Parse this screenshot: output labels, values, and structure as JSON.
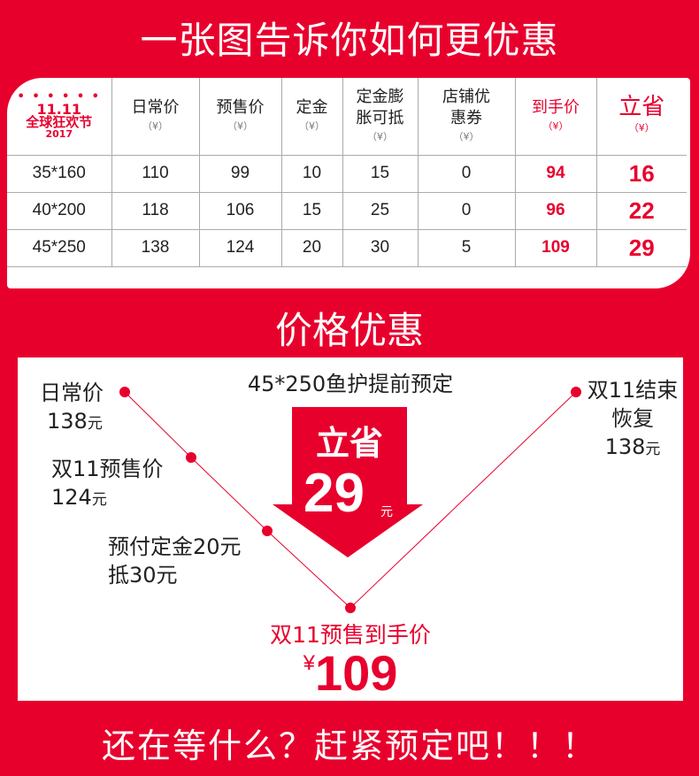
{
  "header": {
    "title": "一张图告诉你如何更优惠"
  },
  "table": {
    "logo": {
      "line1": "11.11",
      "line2": "全球狂欢节",
      "line3": "2017"
    },
    "unit": "（¥）",
    "columns": [
      "日常价",
      "预售价",
      "定金",
      "定金膨胀可抵",
      "店铺优惠券",
      "到手价",
      "立省"
    ],
    "rows": [
      {
        "size": "35*160",
        "values": [
          "110",
          "99",
          "10",
          "15",
          "0",
          "94",
          "16"
        ]
      },
      {
        "size": "40*200",
        "values": [
          "118",
          "106",
          "15",
          "25",
          "0",
          "96",
          "22"
        ]
      },
      {
        "size": "45*250",
        "values": [
          "138",
          "124",
          "20",
          "30",
          "5",
          "109",
          "29"
        ]
      }
    ]
  },
  "section": {
    "title": "价格优惠"
  },
  "diagram": {
    "subtitle": "45*250鱼护提前预定",
    "regular": {
      "label": "日常价",
      "price": "138",
      "unit": "元"
    },
    "presale": {
      "label": "双11预售价",
      "price": "124",
      "unit": "元"
    },
    "deposit": {
      "line1": "预付定金20元",
      "line2": "抵30元"
    },
    "after": {
      "line1": "双11结束",
      "line2": "恢复",
      "price": "138",
      "unit": "元"
    },
    "save": {
      "label": "立省",
      "amount": "29",
      "unit": "元"
    },
    "final": {
      "label": "双11预售到手价",
      "currency": "¥",
      "price": "109"
    },
    "accent": "#e8002d"
  },
  "footer": {
    "text": "还在等什么？赶紧预定吧！！！"
  }
}
